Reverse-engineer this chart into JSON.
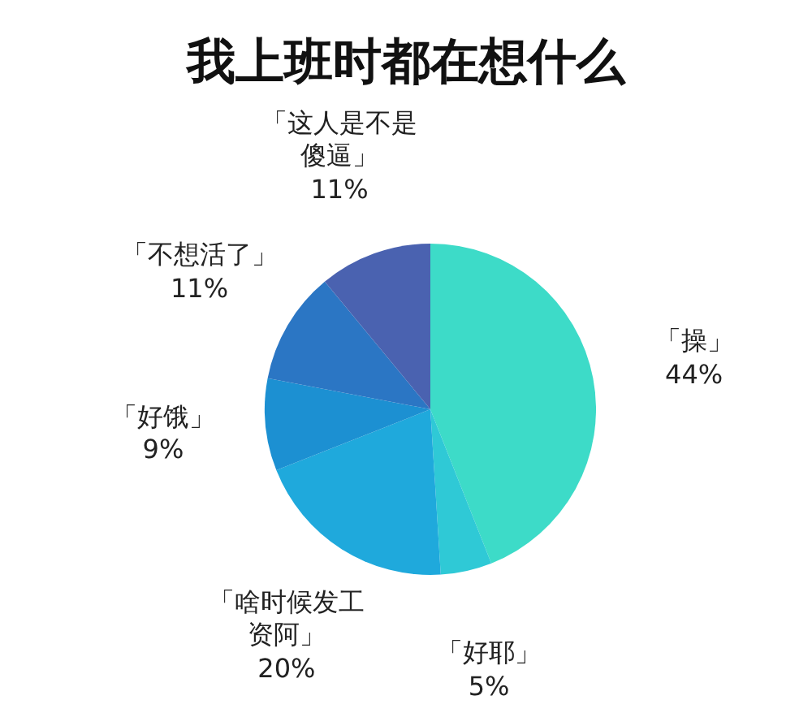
{
  "chart_data": {
    "type": "pie",
    "title": "我上班时都在想什么",
    "categories": [
      "「操」",
      "「好耶」",
      "「啥时候发工资阿」",
      "「好饿」",
      "「不想活了」",
      "「这人是不是傻逼」"
    ],
    "values": [
      44,
      5,
      20,
      9,
      11,
      11
    ],
    "value_labels": [
      "44%",
      "5%",
      "20%",
      "9%",
      "11%",
      "11%"
    ],
    "colors": [
      "#3ddbc8",
      "#2fc9d6",
      "#1fa9dc",
      "#1c90d2",
      "#2b76c4",
      "#4a62b0"
    ]
  }
}
